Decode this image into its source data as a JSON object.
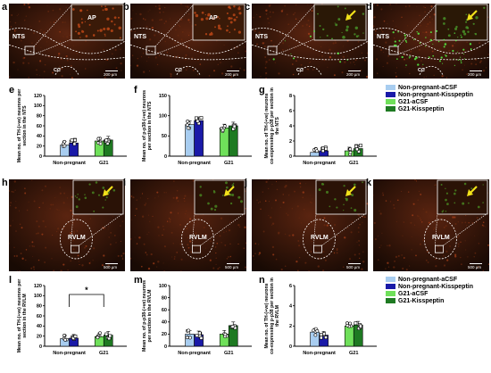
{
  "colors": {
    "np_acsf": "#a8cdf0",
    "np_kp": "#1a1aa8",
    "g21_acsf": "#6fe05a",
    "g21_kp": "#1e7a22",
    "tissue_dark": "#1e0e06",
    "tissue_red": "#7a2a10",
    "fluor_green": "#58ff48",
    "arrow_yellow": "#f2e21a"
  },
  "legend": {
    "items": [
      "Non-pregnant-aCSF",
      "Non-pregnant-Kisspeptin",
      "G21-aCSF",
      "G21-Kisspeptin"
    ]
  },
  "micro_top": [
    {
      "label": "a",
      "regions": [
        "NTS",
        "AP",
        "CC"
      ],
      "scale": "200 µm",
      "arrow": false
    },
    {
      "label": "b",
      "regions": [
        "NTS",
        "AP",
        "CC"
      ],
      "scale": "200 µm",
      "arrow": false
    },
    {
      "label": "c",
      "regions": [
        "NTS",
        "CC"
      ],
      "scale": "200 µm",
      "arrow": true
    },
    {
      "label": "d",
      "regions": [
        "NTS",
        "CC"
      ],
      "scale": "200 µm",
      "arrow": true
    }
  ],
  "micro_mid": [
    {
      "label": "h",
      "regions": [
        "RVLM"
      ],
      "scale": "500 µm",
      "arrow": true
    },
    {
      "label": "i",
      "regions": [
        "RVLM"
      ],
      "scale": "500 µm",
      "arrow": true
    },
    {
      "label": "j",
      "regions": [
        "RVLM"
      ],
      "scale": "500 µm",
      "arrow": true
    },
    {
      "label": "k",
      "regions": [
        "RVLM"
      ],
      "scale": "500 µm",
      "arrow": true
    }
  ],
  "chart_data": [
    {
      "id": "e",
      "type": "bar",
      "ylabel": "Mean no. of TH-(+ve) neurons per section in the NTS",
      "yticks": [
        "0",
        "20",
        "40",
        "60",
        "80",
        "100",
        "120"
      ],
      "ylim": [
        0,
        120
      ],
      "categories": [
        "Non-pregnant",
        "G21"
      ],
      "series": [
        {
          "values": [
            22,
            25
          ]
        },
        {
          "values": [
            26,
            28
          ]
        },
        {
          "values": [
            26,
            30
          ]
        },
        {
          "values": [
            28,
            32
          ]
        }
      ]
    },
    {
      "id": "f",
      "type": "bar",
      "ylabel": "Mean no. of p-p38-(+ve) neurons per section in the NTS",
      "yticks": [
        "0",
        "50",
        "100",
        "150"
      ],
      "ylim": [
        0,
        150
      ],
      "categories": [
        "Non-pregnant",
        "G21"
      ],
      "series": [
        {
          "values": [
            78,
            82
          ]
        },
        {
          "values": [
            88,
            66
          ]
        },
        {
          "values": [
            66,
            70
          ]
        },
        {
          "values": [
            72,
            75
          ]
        }
      ]
    },
    {
      "id": "g",
      "type": "bar",
      "ylabel": "Mean no. of TH-(+ve) neurons co-expressing p-p38 per section in the NTS",
      "yticks": [
        "0",
        "2",
        "4",
        "6",
        "8"
      ],
      "ylim": [
        0,
        8
      ],
      "categories": [
        "Non-pregnant",
        "G21"
      ],
      "series": [
        {
          "values": [
            0.5,
            0.6
          ]
        },
        {
          "values": [
            0.7,
            0.8
          ]
        },
        {
          "values": [
            0.6,
            0.7
          ]
        },
        {
          "values": [
            0.9,
            1.0
          ]
        }
      ]
    },
    {
      "id": "l",
      "type": "bar",
      "ylabel": "Mean no. of TH-(+ve) neurons per section in the RVLM",
      "yticks": [
        "0",
        "20",
        "40",
        "60",
        "80",
        "100",
        "120"
      ],
      "ylim": [
        0,
        120
      ],
      "categories": [
        "Non-pregnant",
        "G21"
      ],
      "series": [
        {
          "values": [
            15,
            17
          ]
        },
        {
          "values": [
            16,
            18
          ]
        },
        {
          "values": [
            18,
            19
          ]
        },
        {
          "values": [
            19,
            22
          ]
        }
      ],
      "annotation": "*"
    },
    {
      "id": "m",
      "type": "bar",
      "ylabel": "Mean no. of p-p38-(+ve) neurons per section in the RVLM",
      "yticks": [
        "0",
        "20",
        "40",
        "60",
        "80",
        "100"
      ],
      "ylim": [
        0,
        100
      ],
      "categories": [
        "Non-pregnant",
        "G21"
      ],
      "series": [
        {
          "values": [
            20,
            22
          ]
        },
        {
          "values": [
            19,
            21
          ]
        },
        {
          "values": [
            18,
            20
          ]
        },
        {
          "values": [
            30,
            34
          ]
        }
      ]
    },
    {
      "id": "n",
      "type": "bar",
      "ylabel": "Mean no. of TH-(+ve) neurons co-expressing p-p38 per section in the RVLM",
      "yticks": [
        "0",
        "2",
        "4",
        "6"
      ],
      "ylim": [
        0,
        6
      ],
      "categories": [
        "Non-pregnant",
        "G21"
      ],
      "series": [
        {
          "values": [
            1.4,
            1.5
          ]
        },
        {
          "values": [
            1.1,
            1.3
          ]
        },
        {
          "values": [
            1.7,
            2.0
          ]
        },
        {
          "values": [
            1.8,
            2.1
          ]
        }
      ]
    }
  ]
}
